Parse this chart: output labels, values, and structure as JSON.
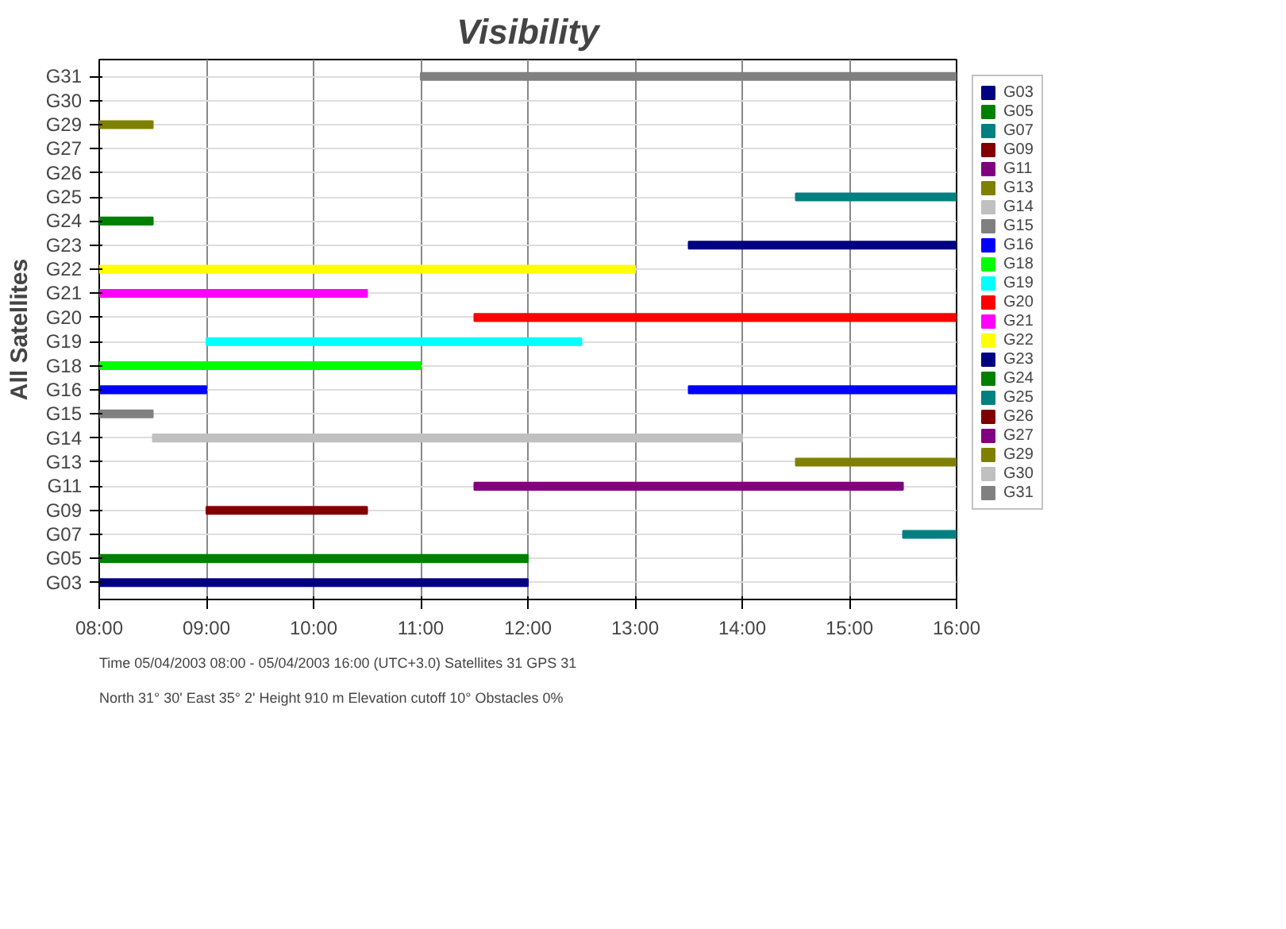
{
  "chart_data": {
    "type": "bar",
    "orientation": "horizontal",
    "title": "Visibility",
    "ylabel": "All Satellites",
    "categories": [
      "G31",
      "G30",
      "G29",
      "G27",
      "G26",
      "G25",
      "G24",
      "G23",
      "G22",
      "G21",
      "G20",
      "G19",
      "G18",
      "G16",
      "G15",
      "G14",
      "G13",
      "G11",
      "G09",
      "G07",
      "G05",
      "G03"
    ],
    "xlim": [
      8,
      16
    ],
    "xticks": [
      {
        "value": 8,
        "label": "08:00"
      },
      {
        "value": 9,
        "label": "09:00"
      },
      {
        "value": 10,
        "label": "10:00"
      },
      {
        "value": 11,
        "label": "11:00"
      },
      {
        "value": 12,
        "label": "12:00"
      },
      {
        "value": 13,
        "label": "13:00"
      },
      {
        "value": 14,
        "label": "14:00"
      },
      {
        "value": 15,
        "label": "15:00"
      },
      {
        "value": 16,
        "label": "16:00"
      }
    ],
    "grid": true,
    "legend": "right",
    "series": [
      {
        "name": "G03",
        "color": "#000080",
        "values": [
          null,
          null,
          null,
          null,
          null,
          null,
          null,
          null,
          null,
          null,
          null,
          null,
          null,
          null,
          null,
          null,
          null,
          null,
          null,
          null,
          null,
          4
        ],
        "base": [
          null,
          null,
          null,
          null,
          null,
          null,
          null,
          null,
          null,
          null,
          null,
          null,
          null,
          null,
          null,
          null,
          null,
          null,
          null,
          null,
          null,
          8
        ]
      },
      {
        "name": "G05",
        "color": "#008000",
        "values": [
          null,
          null,
          null,
          null,
          null,
          null,
          null,
          null,
          null,
          null,
          null,
          null,
          null,
          null,
          null,
          null,
          null,
          null,
          null,
          null,
          4,
          null
        ],
        "base": [
          null,
          null,
          null,
          null,
          null,
          null,
          null,
          null,
          null,
          null,
          null,
          null,
          null,
          null,
          null,
          null,
          null,
          null,
          null,
          null,
          8,
          null
        ]
      },
      {
        "name": "G07",
        "color": "#008080",
        "values": [
          null,
          null,
          null,
          null,
          null,
          null,
          null,
          null,
          null,
          null,
          null,
          null,
          null,
          null,
          null,
          null,
          null,
          null,
          null,
          0.5,
          null,
          null
        ],
        "base": [
          null,
          null,
          null,
          null,
          null,
          null,
          null,
          null,
          null,
          null,
          null,
          null,
          null,
          null,
          null,
          null,
          null,
          null,
          null,
          15.5,
          null,
          null
        ]
      },
      {
        "name": "G09",
        "color": "#800000",
        "values": [
          null,
          null,
          null,
          null,
          null,
          null,
          null,
          null,
          null,
          null,
          null,
          null,
          null,
          null,
          null,
          null,
          null,
          null,
          1.5,
          null,
          null,
          null
        ],
        "base": [
          null,
          null,
          null,
          null,
          null,
          null,
          null,
          null,
          null,
          null,
          null,
          null,
          null,
          null,
          null,
          null,
          null,
          null,
          9,
          null,
          null,
          null
        ]
      },
      {
        "name": "G11",
        "color": "#800080",
        "values": [
          null,
          null,
          null,
          null,
          null,
          null,
          null,
          null,
          null,
          null,
          null,
          null,
          null,
          null,
          null,
          null,
          null,
          4,
          null,
          null,
          null,
          null
        ],
        "base": [
          null,
          null,
          null,
          null,
          null,
          null,
          null,
          null,
          null,
          null,
          null,
          null,
          null,
          null,
          null,
          null,
          null,
          11.5,
          null,
          null,
          null,
          null
        ]
      },
      {
        "name": "G13",
        "color": "#808000",
        "values": [
          null,
          null,
          null,
          null,
          null,
          null,
          null,
          null,
          null,
          null,
          null,
          null,
          null,
          null,
          null,
          null,
          1.5,
          null,
          null,
          null,
          null,
          null
        ],
        "base": [
          null,
          null,
          null,
          null,
          null,
          null,
          null,
          null,
          null,
          null,
          null,
          null,
          null,
          null,
          null,
          null,
          14.5,
          null,
          null,
          null,
          null,
          null
        ]
      },
      {
        "name": "G14",
        "color": "#c0c0c0",
        "values": [
          null,
          null,
          null,
          null,
          null,
          null,
          null,
          null,
          null,
          null,
          null,
          null,
          null,
          null,
          null,
          5.5,
          null,
          null,
          null,
          null,
          null,
          null
        ],
        "base": [
          null,
          null,
          null,
          null,
          null,
          null,
          null,
          null,
          null,
          null,
          null,
          null,
          null,
          null,
          null,
          8.5,
          null,
          null,
          null,
          null,
          null,
          null
        ]
      },
      {
        "name": "G15",
        "color": "#808080",
        "values": [
          null,
          null,
          null,
          null,
          null,
          null,
          null,
          null,
          null,
          null,
          null,
          null,
          null,
          null,
          0.5,
          null,
          null,
          null,
          null,
          null,
          null,
          null
        ],
        "base": [
          null,
          null,
          null,
          null,
          null,
          null,
          null,
          null,
          null,
          null,
          null,
          null,
          null,
          null,
          8,
          null,
          null,
          null,
          null,
          null,
          null,
          null
        ]
      },
      {
        "name": "G16",
        "color": "#0000ff",
        "values": [
          null,
          null,
          null,
          null,
          null,
          null,
          null,
          null,
          null,
          null,
          null,
          null,
          null,
          1,
          null,
          null,
          null,
          null,
          null,
          null,
          null,
          null
        ],
        "base": [
          null,
          null,
          null,
          null,
          null,
          null,
          null,
          null,
          null,
          null,
          null,
          null,
          null,
          8,
          null,
          null,
          null,
          null,
          null,
          null,
          null,
          null
        ]
      },
      {
        "color": "#0000ff",
        "values": [
          null,
          null,
          null,
          null,
          null,
          null,
          null,
          null,
          null,
          null,
          null,
          null,
          null,
          2.5,
          null,
          null,
          null,
          null,
          null,
          null,
          null,
          null
        ],
        "base": [
          null,
          null,
          null,
          null,
          null,
          null,
          null,
          null,
          null,
          null,
          null,
          null,
          null,
          13.5,
          null,
          null,
          null,
          null,
          null,
          null,
          null,
          null
        ]
      },
      {
        "name": "G18",
        "color": "#00ff00",
        "values": [
          null,
          null,
          null,
          null,
          null,
          null,
          null,
          null,
          null,
          null,
          null,
          null,
          3,
          null,
          null,
          null,
          null,
          null,
          null,
          null,
          null,
          null
        ],
        "base": [
          null,
          null,
          null,
          null,
          null,
          null,
          null,
          null,
          null,
          null,
          null,
          null,
          8,
          null,
          null,
          null,
          null,
          null,
          null,
          null,
          null,
          null
        ]
      },
      {
        "name": "G19",
        "color": "#00ffff",
        "values": [
          null,
          null,
          null,
          null,
          null,
          null,
          null,
          null,
          null,
          null,
          null,
          3.5,
          null,
          null,
          null,
          null,
          null,
          null,
          null,
          null,
          null,
          null
        ],
        "base": [
          null,
          null,
          null,
          null,
          null,
          null,
          null,
          null,
          null,
          null,
          null,
          9,
          null,
          null,
          null,
          null,
          null,
          null,
          null,
          null,
          null,
          null
        ]
      },
      {
        "name": "G20",
        "color": "#ff0000",
        "values": [
          null,
          null,
          null,
          null,
          null,
          null,
          null,
          null,
          null,
          null,
          4.5,
          null,
          null,
          null,
          null,
          null,
          null,
          null,
          null,
          null,
          null,
          null
        ],
        "base": [
          null,
          null,
          null,
          null,
          null,
          null,
          null,
          null,
          null,
          null,
          11.5,
          null,
          null,
          null,
          null,
          null,
          null,
          null,
          null,
          null,
          null,
          null
        ]
      },
      {
        "name": "G21",
        "color": "#ff00ff",
        "values": [
          null,
          null,
          null,
          null,
          null,
          null,
          null,
          null,
          null,
          2.5,
          null,
          null,
          null,
          null,
          null,
          null,
          null,
          null,
          null,
          null,
          null,
          null
        ],
        "base": [
          null,
          null,
          null,
          null,
          null,
          null,
          null,
          null,
          null,
          8,
          null,
          null,
          null,
          null,
          null,
          null,
          null,
          null,
          null,
          null,
          null,
          null
        ]
      },
      {
        "name": "G22",
        "color": "#ffff00",
        "values": [
          null,
          null,
          null,
          null,
          null,
          null,
          null,
          null,
          5,
          null,
          null,
          null,
          null,
          null,
          null,
          null,
          null,
          null,
          null,
          null,
          null,
          null
        ],
        "base": [
          null,
          null,
          null,
          null,
          null,
          null,
          null,
          null,
          8,
          null,
          null,
          null,
          null,
          null,
          null,
          null,
          null,
          null,
          null,
          null,
          null,
          null
        ]
      },
      {
        "name": "G23",
        "color": "#000080",
        "values": [
          null,
          null,
          null,
          null,
          null,
          null,
          null,
          2.5,
          null,
          null,
          null,
          null,
          null,
          null,
          null,
          null,
          null,
          null,
          null,
          null,
          null,
          null
        ],
        "base": [
          null,
          null,
          null,
          null,
          null,
          null,
          null,
          13.5,
          null,
          null,
          null,
          null,
          null,
          null,
          null,
          null,
          null,
          null,
          null,
          null,
          null,
          null
        ]
      },
      {
        "name": "G24",
        "color": "#008000",
        "values": [
          null,
          null,
          null,
          null,
          null,
          null,
          0.5,
          null,
          null,
          null,
          null,
          null,
          null,
          null,
          null,
          null,
          null,
          null,
          null,
          null,
          null,
          null
        ],
        "base": [
          null,
          null,
          null,
          null,
          null,
          null,
          8,
          null,
          null,
          null,
          null,
          null,
          null,
          null,
          null,
          null,
          null,
          null,
          null,
          null,
          null,
          null
        ]
      },
      {
        "name": "G25",
        "color": "#008080",
        "values": [
          null,
          null,
          null,
          null,
          null,
          1.5,
          null,
          null,
          null,
          null,
          null,
          null,
          null,
          null,
          null,
          null,
          null,
          null,
          null,
          null,
          null,
          null
        ],
        "base": [
          null,
          null,
          null,
          null,
          null,
          14.5,
          null,
          null,
          null,
          null,
          null,
          null,
          null,
          null,
          null,
          null,
          null,
          null,
          null,
          null,
          null,
          null
        ]
      },
      {
        "name": "G26",
        "color": "#800000",
        "values": [
          null,
          null,
          null,
          null,
          null,
          null,
          null,
          null,
          null,
          null,
          null,
          null,
          null,
          null,
          null,
          null,
          null,
          null,
          null,
          null,
          null,
          null
        ]
      },
      {
        "name": "G27",
        "color": "#800080",
        "values": [
          null,
          null,
          null,
          null,
          null,
          null,
          null,
          null,
          null,
          null,
          null,
          null,
          null,
          null,
          null,
          null,
          null,
          null,
          null,
          null,
          null,
          null
        ]
      },
      {
        "name": "G29",
        "color": "#808000",
        "values": [
          null,
          null,
          0.5,
          null,
          null,
          null,
          null,
          null,
          null,
          null,
          null,
          null,
          null,
          null,
          null,
          null,
          null,
          null,
          null,
          null,
          null,
          null
        ],
        "base": [
          null,
          null,
          8,
          null,
          null,
          null,
          null,
          null,
          null,
          null,
          null,
          null,
          null,
          null,
          null,
          null,
          null,
          null,
          null,
          null,
          null,
          null
        ]
      },
      {
        "name": "G30",
        "color": "#c0c0c0",
        "values": [
          null,
          null,
          null,
          null,
          null,
          null,
          null,
          null,
          null,
          null,
          null,
          null,
          null,
          null,
          null,
          null,
          null,
          null,
          null,
          null,
          null,
          null
        ]
      },
      {
        "name": "G31",
        "color": "#808080",
        "values": [
          5,
          null,
          null,
          null,
          null,
          null,
          null,
          null,
          null,
          null,
          null,
          null,
          null,
          null,
          null,
          null,
          null,
          null,
          null,
          null,
          null,
          null
        ],
        "base": [
          11,
          null,
          null,
          null,
          null,
          null,
          null,
          null,
          null,
          null,
          null,
          null,
          null,
          null,
          null,
          null,
          null,
          null,
          null,
          null,
          null,
          null
        ]
      }
    ],
    "annotations": [
      "North 31° 30'  East 35° 2'  Height 910 m      Elevation cutoff 10°  Obstacles 0%",
      "Time 05/04/2003 08:00 - 05/04/2003 16:00 (UTC+3.0)      Satellites 31  GPS 31"
    ]
  }
}
